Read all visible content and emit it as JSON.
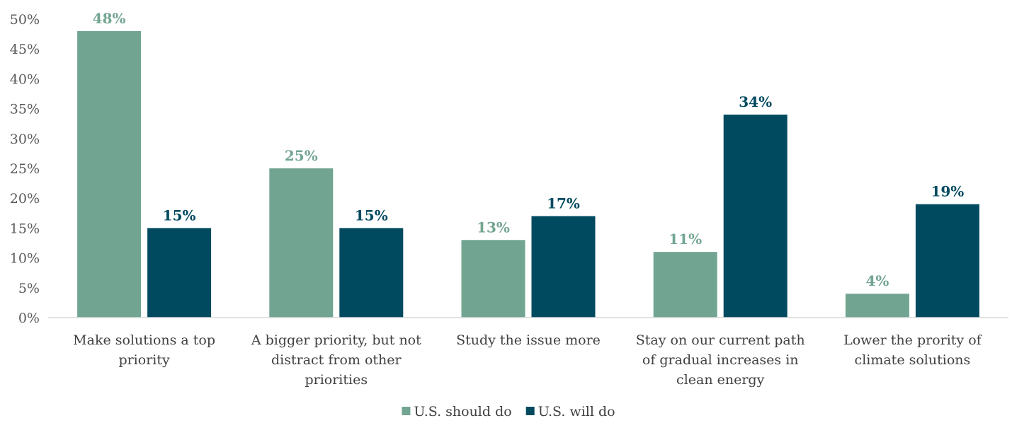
{
  "chart_data": {
    "type": "bar",
    "categories": [
      [
        "Make solutions a top",
        "priority"
      ],
      [
        "A bigger priority, but not",
        "distract from other",
        "priorities"
      ],
      [
        "Study the issue more"
      ],
      [
        "Stay on our current path",
        "of gradual increases in",
        "clean energy"
      ],
      [
        "Lower the prority of",
        "climate solutions"
      ]
    ],
    "series": [
      {
        "name": "U.S. should do",
        "values": [
          48,
          25,
          13,
          11,
          4
        ],
        "color": "#72a591"
      },
      {
        "name": "U.S. will do",
        "values": [
          15,
          15,
          17,
          34,
          19
        ],
        "color": "#004a60"
      }
    ],
    "value_suffix": "%",
    "ylim": [
      0,
      50
    ],
    "ytick_step": 5,
    "y_ticks": [
      "0%",
      "5%",
      "10%",
      "15%",
      "20%",
      "25%",
      "30%",
      "35%",
      "40%",
      "45%",
      "50%"
    ],
    "grid": false,
    "legend_position": "bottom-center",
    "data_labels": true,
    "title": "",
    "xlabel": "",
    "ylabel": ""
  }
}
